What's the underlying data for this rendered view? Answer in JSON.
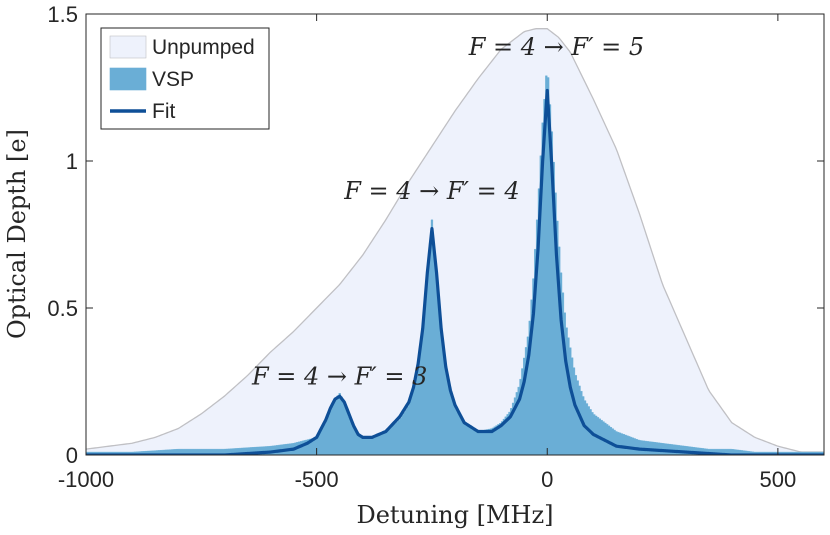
{
  "chart_data": {
    "type": "area",
    "xlabel": "Detuning [MHz]",
    "ylabel": "Optical Depth [e]",
    "xlim": [
      -1000,
      600
    ],
    "ylim": [
      0,
      1.5
    ],
    "x_ticks": [
      -1000,
      -500,
      0,
      500
    ],
    "x_tick_labels": [
      "-1000",
      "-500",
      "0",
      "500"
    ],
    "y_ticks": [
      0,
      0.5,
      1,
      1.5
    ],
    "y_tick_labels": [
      "0",
      "0.5",
      "1",
      "1.5"
    ],
    "grid": false,
    "legend_position": "top-left",
    "colors": {
      "unpumped_fill": "#eef2fc",
      "unpumped_edge": "#c0c0c4",
      "vsp_fill": "#6aaed6",
      "fit_line": "#0e4f97",
      "axis": "#262626"
    },
    "series": [
      {
        "name": "Unpumped",
        "kind": "filled-envelope",
        "x": [
          -1000,
          -950,
          -900,
          -850,
          -800,
          -750,
          -700,
          -650,
          -600,
          -550,
          -500,
          -450,
          -400,
          -350,
          -300,
          -250,
          -200,
          -150,
          -100,
          -50,
          -25,
          0,
          25,
          50,
          100,
          150,
          200,
          250,
          300,
          350,
          400,
          450,
          500,
          550,
          600
        ],
        "y": [
          0.02,
          0.03,
          0.04,
          0.06,
          0.09,
          0.14,
          0.2,
          0.27,
          0.35,
          0.42,
          0.5,
          0.58,
          0.68,
          0.8,
          0.93,
          1.05,
          1.17,
          1.28,
          1.38,
          1.44,
          1.45,
          1.45,
          1.42,
          1.37,
          1.21,
          1.04,
          0.82,
          0.58,
          0.4,
          0.22,
          0.11,
          0.06,
          0.03,
          0.01,
          0.01
        ]
      },
      {
        "name": "VSP",
        "kind": "filled-histogram",
        "x": [
          -1000,
          -900,
          -800,
          -700,
          -600,
          -550,
          -500,
          -480,
          -470,
          -460,
          -450,
          -440,
          -430,
          -420,
          -400,
          -380,
          -350,
          -320,
          -300,
          -280,
          -270,
          -260,
          -250,
          -240,
          -230,
          -220,
          -200,
          -180,
          -150,
          -120,
          -100,
          -80,
          -60,
          -40,
          -30,
          -20,
          -10,
          0,
          10,
          20,
          30,
          40,
          60,
          80,
          100,
          150,
          200,
          250,
          300,
          350,
          400,
          450,
          500,
          600
        ],
        "y": [
          0.01,
          0.01,
          0.02,
          0.02,
          0.03,
          0.04,
          0.06,
          0.11,
          0.15,
          0.19,
          0.21,
          0.18,
          0.13,
          0.09,
          0.06,
          0.06,
          0.08,
          0.12,
          0.17,
          0.3,
          0.42,
          0.6,
          0.8,
          0.6,
          0.42,
          0.3,
          0.16,
          0.11,
          0.08,
          0.09,
          0.11,
          0.15,
          0.24,
          0.42,
          0.6,
          0.85,
          1.13,
          1.33,
          1.1,
          0.84,
          0.62,
          0.45,
          0.28,
          0.19,
          0.14,
          0.08,
          0.05,
          0.04,
          0.03,
          0.02,
          0.02,
          0.01,
          0.01,
          0.01
        ]
      },
      {
        "name": "Fit",
        "kind": "line",
        "x": [
          -1000,
          -900,
          -800,
          -700,
          -600,
          -550,
          -520,
          -500,
          -490,
          -480,
          -470,
          -460,
          -450,
          -440,
          -430,
          -420,
          -410,
          -400,
          -380,
          -350,
          -320,
          -300,
          -290,
          -280,
          -270,
          -260,
          -250,
          -240,
          -230,
          -220,
          -210,
          -200,
          -180,
          -150,
          -120,
          -100,
          -80,
          -60,
          -50,
          -40,
          -30,
          -20,
          -10,
          0,
          10,
          20,
          30,
          40,
          50,
          60,
          80,
          100,
          150,
          200,
          300,
          400,
          500,
          600
        ],
        "y": [
          0.0,
          0.0,
          0.0,
          0.0,
          0.01,
          0.02,
          0.04,
          0.06,
          0.09,
          0.12,
          0.16,
          0.19,
          0.2,
          0.18,
          0.14,
          0.1,
          0.07,
          0.06,
          0.06,
          0.08,
          0.13,
          0.18,
          0.23,
          0.31,
          0.43,
          0.62,
          0.77,
          0.62,
          0.43,
          0.3,
          0.22,
          0.17,
          0.11,
          0.08,
          0.08,
          0.1,
          0.13,
          0.19,
          0.25,
          0.34,
          0.48,
          0.7,
          1.0,
          1.24,
          0.98,
          0.68,
          0.46,
          0.32,
          0.23,
          0.17,
          0.1,
          0.07,
          0.03,
          0.02,
          0.01,
          0.0,
          0.0,
          0.0
        ]
      }
    ],
    "annotations": [
      {
        "text": "F = 4 → F′ = 3",
        "x": -450,
        "y": 0.24
      },
      {
        "text": "F = 4 → F′ = 4",
        "x": -250,
        "y": 0.87
      },
      {
        "text": "F = 4 → F′ = 5",
        "x": 20,
        "y": 1.36
      }
    ]
  }
}
